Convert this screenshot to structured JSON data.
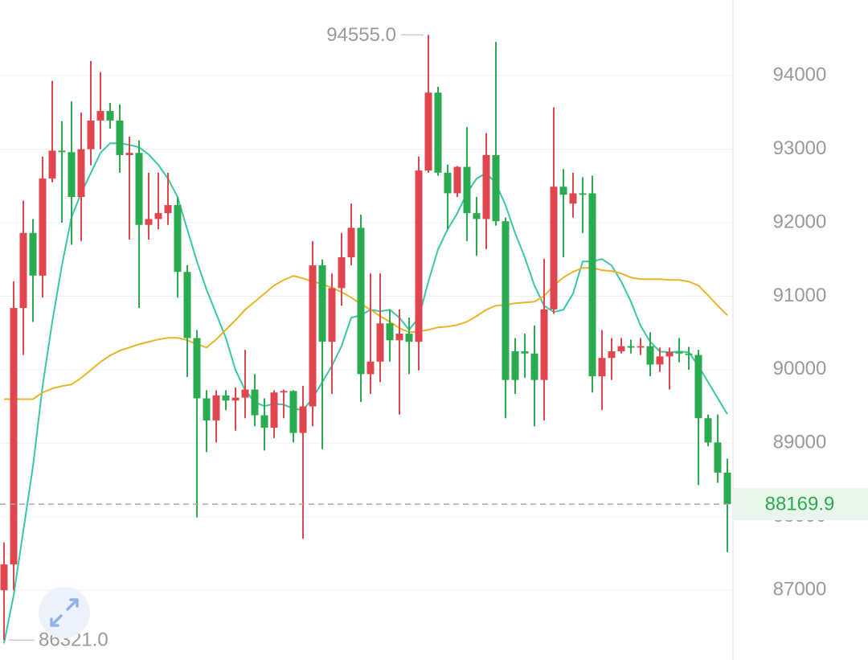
{
  "chart_data": {
    "type": "candlestick",
    "up_color": "#e0464f",
    "down_color": "#2aab4f",
    "grid": true,
    "ylim": [
      86050,
      95030
    ],
    "yticks": [
      87000,
      88000,
      89000,
      90000,
      91000,
      92000,
      93000,
      94000
    ],
    "max_label": {
      "value": 94555,
      "label": "94555.0"
    },
    "min_label": {
      "value": 86321,
      "label": "86321.0"
    },
    "last_price": 88169.9,
    "candles": {
      "open": [
        87000,
        87350,
        90840,
        91860,
        91280,
        92600,
        92980,
        92960,
        92350,
        93000,
        93390,
        93520,
        93390,
        92920,
        92950,
        91970,
        92050,
        92130,
        92240,
        91330,
        90430,
        89610,
        89310,
        89650,
        89580,
        89620,
        89730,
        89380,
        89210,
        89690,
        89710,
        89140,
        89500,
        91420,
        90380,
        91110,
        91530,
        91930,
        89940,
        90110,
        90630,
        90400,
        90490,
        90380,
        92710,
        93770,
        92680,
        92400,
        92760,
        92130,
        92050,
        92920,
        92020,
        90250,
        90250,
        90220,
        89860,
        90820,
        92490,
        92260,
        92400,
        92400,
        89910,
        90160,
        90250,
        90320,
        90300,
        90320,
        90070,
        90180,
        90240,
        90220,
        90200,
        89340,
        89010,
        88600
      ],
      "high": [
        87650,
        91200,
        92300,
        92050,
        92900,
        93930,
        93380,
        93650,
        93500,
        94200,
        94050,
        93630,
        93610,
        93170,
        93120,
        92680,
        92680,
        92680,
        92350,
        91420,
        90540,
        89720,
        89720,
        89720,
        89760,
        90270,
        89940,
        89610,
        89720,
        89730,
        89720,
        89780,
        91750,
        91500,
        91310,
        91860,
        92260,
        92110,
        91310,
        91310,
        90820,
        90820,
        90710,
        92900,
        94555,
        93850,
        92790,
        92770,
        93300,
        92350,
        93220,
        94460,
        92070,
        90430,
        90490,
        90600,
        91510,
        93570,
        92730,
        92680,
        92620,
        92640,
        90540,
        90430,
        90430,
        90410,
        90430,
        90510,
        90300,
        90300,
        90430,
        90310,
        90270,
        89390,
        89390,
        88790
      ],
      "low": [
        86321,
        87000,
        90200,
        90650,
        90980,
        92550,
        92000,
        91700,
        91750,
        92780,
        93000,
        93280,
        92680,
        91770,
        90840,
        91770,
        91910,
        91970,
        90980,
        89900,
        87990,
        88880,
        89010,
        89450,
        89170,
        89340,
        89230,
        88900,
        89070,
        89340,
        89010,
        87700,
        89230,
        88920,
        89670,
        90870,
        91420,
        89560,
        89670,
        89830,
        90110,
        89390,
        89940,
        89990,
        92680,
        92640,
        91910,
        92350,
        91750,
        91550,
        91640,
        91960,
        89340,
        89670,
        89890,
        89230,
        89310,
        90760,
        91530,
        92070,
        91860,
        89690,
        89450,
        89860,
        90220,
        90220,
        90200,
        89910,
        89970,
        89730,
        90100,
        90000,
        88430,
        88960,
        88460,
        87520
      ],
      "close": [
        87350,
        90840,
        91860,
        91280,
        92600,
        92980,
        92960,
        92350,
        93000,
        93390,
        93520,
        93390,
        92920,
        92950,
        91970,
        92050,
        92130,
        92240,
        91330,
        90430,
        89610,
        89310,
        89650,
        89580,
        89620,
        89730,
        89380,
        89210,
        89690,
        89710,
        89140,
        89500,
        91420,
        90380,
        91110,
        91530,
        91930,
        89940,
        90110,
        90630,
        90400,
        90490,
        90380,
        92710,
        93770,
        92680,
        92400,
        92760,
        92130,
        92050,
        92920,
        92020,
        89860,
        89860,
        90220,
        89860,
        90820,
        92490,
        92380,
        92400,
        92380,
        89910,
        90160,
        90250,
        90320,
        90300,
        90320,
        90070,
        90180,
        90240,
        90220,
        90200,
        89340,
        89010,
        88600,
        88169.9
      ]
    },
    "overlays": [
      {
        "color": "#3cc6a8",
        "values": [
          86276,
          86933,
          87808,
          88683,
          89777,
          90652,
          91418,
          92075,
          92403,
          92676,
          92950,
          93081,
          93081,
          93059,
          93026,
          92928,
          92786,
          92600,
          92348,
          91910,
          91473,
          91090,
          90762,
          90434,
          89996,
          89722,
          89558,
          89504,
          89536,
          89525,
          89471,
          89449,
          89613,
          89832,
          90051,
          90324,
          90707,
          90740,
          90816,
          90795,
          90816,
          90707,
          90543,
          90707,
          91199,
          91637,
          91910,
          92129,
          92403,
          92600,
          92676,
          92534,
          92239,
          91856,
          91528,
          91145,
          90871,
          90784,
          90816,
          91035,
          91473,
          91473,
          91506,
          91418,
          91199,
          90926,
          90598,
          90379,
          90248,
          90237,
          90248,
          90237,
          90051,
          89832,
          89613,
          89394
        ]
      },
      {
        "color": "#e8b52a",
        "values": [
          89600,
          89600,
          89600,
          89600,
          89690,
          89744,
          89777,
          89799,
          89887,
          89996,
          90105,
          90193,
          90259,
          90302,
          90346,
          90379,
          90412,
          90434,
          90434,
          90401,
          90346,
          90302,
          90412,
          90543,
          90674,
          90816,
          90926,
          91035,
          91145,
          91221,
          91276,
          91243,
          91199,
          91167,
          91112,
          91057,
          90981,
          90893,
          90816,
          90729,
          90652,
          90565,
          90510,
          90521,
          90543,
          90576,
          90587,
          90609,
          90652,
          90729,
          90816,
          90871,
          90882,
          90904,
          90915,
          90926,
          91002,
          91145,
          91254,
          91331,
          91385,
          91385,
          91353,
          91342,
          91309,
          91254,
          91232,
          91232,
          91232,
          91221,
          91221,
          91199,
          91145,
          91013,
          90871,
          90740
        ]
      }
    ]
  }
}
